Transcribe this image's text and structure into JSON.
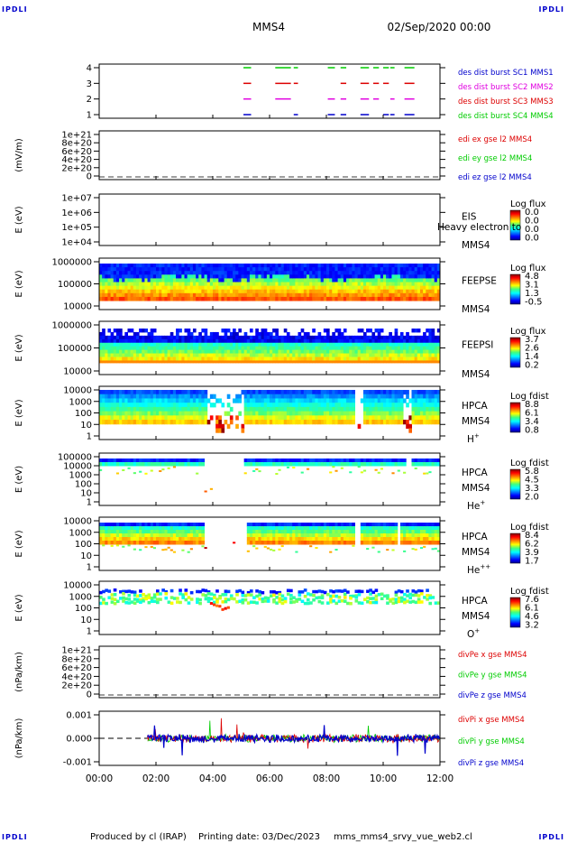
{
  "header": {
    "corner_label": "IPDLI",
    "spacecraft": "MMS4",
    "datetime": "02/Sep/2020 00:00"
  },
  "footer": {
    "produced_by": "Produced by cl (IRAP)",
    "printing_date": "Printing date: 03/Dec/2023",
    "script_name": "mms_mms4_srvy_vue_web2.cl"
  },
  "colors": {
    "burst_mms1": "#0000cc",
    "burst_mms2": "#e000e0",
    "burst_mms3": "#dd0000",
    "burst_mms4": "#00cc00",
    "x_component": "#dd0000",
    "y_component": "#00cc00",
    "z_component": "#0000cc"
  },
  "chart_data": [
    {
      "type": "timeline",
      "name": "burst",
      "yticks": [
        "4",
        "3",
        "2",
        "1"
      ],
      "ylim": [
        0.5,
        4.5
      ],
      "legend": [
        "des dist burst SC1 MMS1",
        "des dist burst SC2 MMS2",
        "des dist burst SC3 MMS3",
        "des dist burst SC4 MMS4"
      ],
      "intervals_hours": [
        [
          5.08,
          5.35
        ],
        [
          6.2,
          6.75
        ],
        [
          6.85,
          7.0
        ],
        [
          8.05,
          8.3
        ],
        [
          8.5,
          8.7
        ],
        [
          9.2,
          9.5
        ],
        [
          9.65,
          9.85
        ],
        [
          10.0,
          10.2
        ],
        [
          10.25,
          10.4
        ],
        [
          10.75,
          11.1
        ]
      ]
    },
    {
      "type": "line",
      "name": "edi-e",
      "ylabel": "(mV/m)",
      "yticks": [
        "1e+21",
        "8e+20",
        "6e+20",
        "4e+20",
        "2e+20",
        "0"
      ],
      "ylim": [
        0,
        1e+21
      ],
      "legend": [
        "edi ex gse l2 MMS4",
        "edi ey gse l2 MMS4",
        "edi ez gse l2 MMS4"
      ]
    },
    {
      "type": "heatmap",
      "name": "eis",
      "ylabel": "E (eV)",
      "yticks": [
        "1e+07",
        "1e+06",
        "1e+05",
        "1e+04"
      ],
      "ylim": [
        10000.0,
        10000000.0
      ],
      "instrument": [
        "EIS",
        "MMS4"
      ],
      "overlay_text": "Heavy electron to",
      "colorbar_title": "Log flux",
      "colorbar_ticks": [
        "0.0",
        "0.0",
        "0.0",
        "0.0"
      ]
    },
    {
      "type": "heatmap",
      "name": "feepse",
      "ylabel": "E (eV)",
      "yticks": [
        "1000000",
        "100000",
        "10000"
      ],
      "ylim": [
        10000.0,
        1000000.0
      ],
      "instrument": [
        "FEEPSE",
        "MMS4"
      ],
      "colorbar_title": "Log flux",
      "colorbar_ticks": [
        "4.8",
        "3.1",
        "1.3",
        "-0.5"
      ]
    },
    {
      "type": "heatmap",
      "name": "feepsi",
      "ylabel": "E (eV)",
      "yticks": [
        "1000000",
        "100000",
        "10000"
      ],
      "ylim": [
        10000.0,
        1000000.0
      ],
      "instrument": [
        "FEEPSI",
        "MMS4"
      ],
      "colorbar_title": "Log flux",
      "colorbar_ticks": [
        "3.7",
        "2.6",
        "1.4",
        "0.2"
      ]
    },
    {
      "type": "heatmap",
      "name": "hpca-h",
      "ylabel": "E (eV)",
      "yticks": [
        "10000",
        "1000",
        "100",
        "10",
        "1"
      ],
      "ylim": [
        1,
        10000.0
      ],
      "instrument": [
        "HPCA",
        "MMS4"
      ],
      "species": "H+",
      "colorbar_title": "Log fdist",
      "colorbar_ticks": [
        "8.8",
        "6.1",
        "3.4",
        "0.8"
      ]
    },
    {
      "type": "heatmap",
      "name": "hpca-he",
      "ylabel": "E (eV)",
      "yticks": [
        "100000",
        "10000",
        "1000",
        "100",
        "10",
        "1"
      ],
      "ylim": [
        1,
        100000.0
      ],
      "instrument": [
        "HPCA",
        "MMS4"
      ],
      "species": "He+",
      "colorbar_title": "Log fdist",
      "colorbar_ticks": [
        "5.8",
        "4.5",
        "3.3",
        "2.0"
      ]
    },
    {
      "type": "heatmap",
      "name": "hpca-hepp",
      "ylabel": "E (eV)",
      "yticks": [
        "10000",
        "1000",
        "100",
        "10",
        "1"
      ],
      "ylim": [
        1,
        10000.0
      ],
      "instrument": [
        "HPCA",
        "MMS4"
      ],
      "species": "He++",
      "colorbar_title": "Log fdist",
      "colorbar_ticks": [
        "8.4",
        "6.2",
        "3.9",
        "1.7"
      ]
    },
    {
      "type": "heatmap",
      "name": "hpca-o",
      "ylabel": "E (eV)",
      "yticks": [
        "10000",
        "1000",
        "100",
        "10",
        "1"
      ],
      "ylim": [
        1,
        10000.0
      ],
      "instrument": [
        "HPCA",
        "MMS4"
      ],
      "species": "O+",
      "colorbar_title": "Log fdist",
      "colorbar_ticks": [
        "7.6",
        "6.1",
        "4.6",
        "3.2"
      ]
    },
    {
      "type": "line",
      "name": "divpe",
      "ylabel": "(nPa/km)",
      "yticks": [
        "1e+21",
        "8e+20",
        "6e+20",
        "4e+20",
        "2e+20",
        "0"
      ],
      "ylim": [
        0,
        1e+21
      ],
      "legend": [
        "divPe x gse MMS4",
        "divPe y gse MMS4",
        "divPe z gse MMS4"
      ]
    },
    {
      "type": "line",
      "name": "divpi",
      "ylabel": "(nPa/km)",
      "yticks": [
        "0.001",
        "0.000",
        "-0.001"
      ],
      "ylim": [
        -0.0016,
        0.0016
      ],
      "legend": [
        "divPi x gse MMS4",
        "divPi y gse MMS4",
        "divPi z gse MMS4"
      ],
      "data_start_hours": 1.7
    }
  ],
  "x_axis": {
    "xlim_hours": [
      0,
      12
    ],
    "tick_labels": [
      "00:00",
      "02:00",
      "04:00",
      "06:00",
      "08:00",
      "10:00",
      "12:00"
    ]
  }
}
